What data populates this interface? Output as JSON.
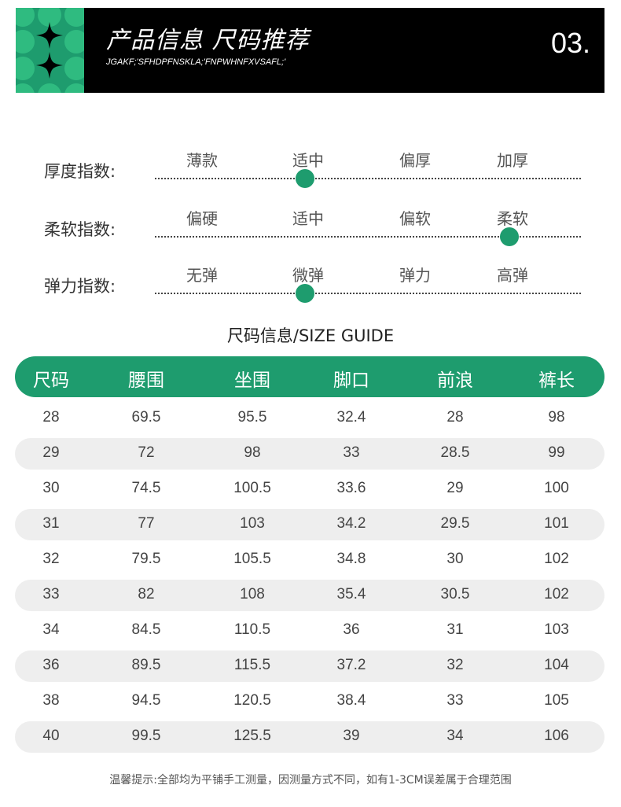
{
  "header": {
    "title": "产品信息  尺码推荐",
    "subtitle": "JGAKF;'SFHDPFNSKLA;'FNPWHNFXVSAFL;'",
    "number": "03."
  },
  "indexes": [
    {
      "label": "厚度指数:",
      "options": [
        "薄款",
        "适中",
        "偏厚",
        "加厚"
      ],
      "selected": 1
    },
    {
      "label": "柔软指数:",
      "options": [
        "偏硬",
        "适中",
        "偏软",
        "柔软"
      ],
      "selected": 3
    },
    {
      "label": "弹力指数:",
      "options": [
        "无弹",
        "微弹",
        "弹力",
        "高弹"
      ],
      "selected": 1
    }
  ],
  "size_guide": {
    "title": "尺码信息/SIZE GUIDE",
    "headers": [
      "尺码",
      "腰围",
      "坐围",
      "脚口",
      "前浪",
      "裤长"
    ],
    "rows": [
      [
        "28",
        "69.5",
        "95.5",
        "32.4",
        "28",
        "98"
      ],
      [
        "29",
        "72",
        "98",
        "33",
        "28.5",
        "99"
      ],
      [
        "30",
        "74.5",
        "100.5",
        "33.6",
        "29",
        "100"
      ],
      [
        "31",
        "77",
        "103",
        "34.2",
        "29.5",
        "101"
      ],
      [
        "32",
        "79.5",
        "105.5",
        "34.8",
        "30",
        "102"
      ],
      [
        "33",
        "82",
        "108",
        "35.4",
        "30.5",
        "102"
      ],
      [
        "34",
        "84.5",
        "110.5",
        "36",
        "31",
        "103"
      ],
      [
        "36",
        "89.5",
        "115.5",
        "37.2",
        "32",
        "104"
      ],
      [
        "38",
        "94.5",
        "120.5",
        "38.4",
        "33",
        "105"
      ],
      [
        "40",
        "99.5",
        "125.5",
        "39",
        "34",
        "106"
      ]
    ]
  },
  "footer": "温馨提示:全部均为平铺手工测量，因测量方式不同，如有1-3CM误差属于合理范围",
  "colors": {
    "accent": "#1e9c6e",
    "header_bg": "#000000",
    "row_shade": "#eeeeee"
  }
}
